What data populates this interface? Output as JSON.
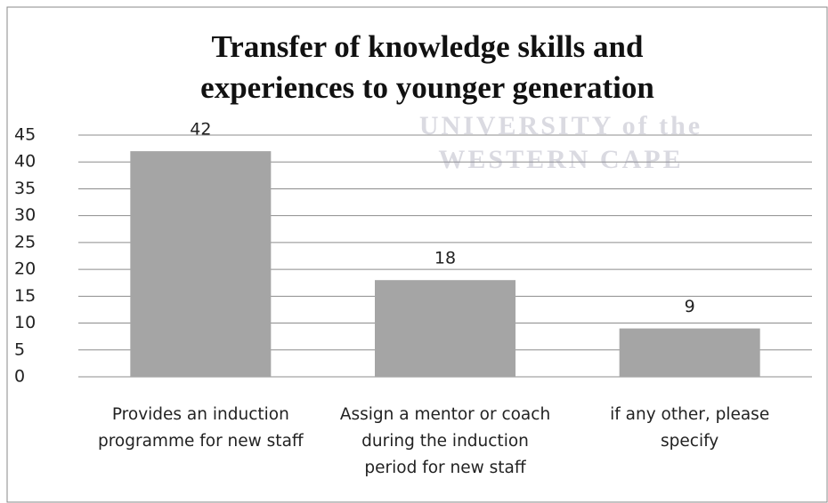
{
  "chart_data": {
    "type": "bar",
    "title": "Transfer of knowledge skills and experiences to younger generation",
    "watermark": [
      "UNIVERSITY of the",
      "WESTERN CAPE"
    ],
    "categories": [
      "Provides an induction programme for new staff",
      "Assign a mentor or coach during the induction period  for new staff",
      "if any other, please specify"
    ],
    "values": [
      42,
      18,
      9
    ],
    "color": "#a5a5a5",
    "ylim": [
      0,
      45
    ],
    "yticks": [
      0,
      5,
      10,
      15,
      20,
      25,
      30,
      35,
      40,
      45
    ],
    "grid": true
  }
}
